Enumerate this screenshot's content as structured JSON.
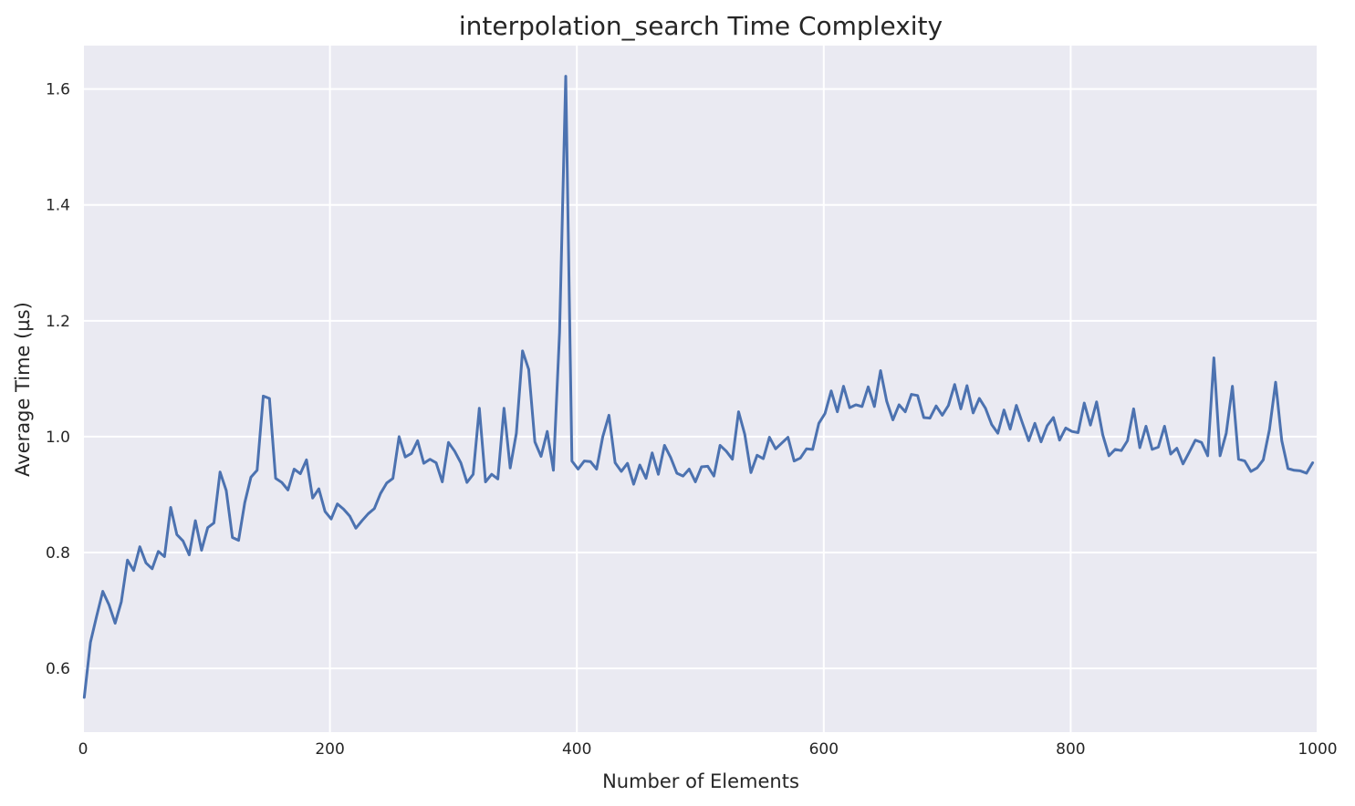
{
  "chart_data": {
    "type": "line",
    "title": "interpolation_search Time Complexity",
    "xlabel": "Number of Elements",
    "ylabel": "Average Time (µs)",
    "xlim": [
      0,
      1000
    ],
    "ylim": [
      0.49,
      1.675
    ],
    "x_ticks": [
      0,
      200,
      400,
      600,
      800,
      1000
    ],
    "y_ticks": [
      0.6,
      0.8,
      1.0,
      1.2,
      1.4,
      1.6
    ],
    "x_tick_labels": [
      "0",
      "200",
      "400",
      "600",
      "800",
      "1000"
    ],
    "y_tick_labels": [
      "0.6",
      "0.8",
      "1.0",
      "1.2",
      "1.4",
      "1.6"
    ],
    "grid": true,
    "colors": {
      "background": "#eaeaf2",
      "grid": "#ffffff",
      "line": "#4c72b0",
      "text": "#262626"
    },
    "series": [
      {
        "x": [
          1,
          6,
          11,
          16,
          21,
          26,
          31,
          36,
          41,
          46,
          51,
          56,
          61,
          66,
          71,
          76,
          81,
          86,
          91,
          96,
          101,
          106,
          111,
          116,
          121,
          126,
          131,
          136,
          141,
          146,
          151,
          156,
          161,
          166,
          171,
          176,
          181,
          186,
          191,
          196,
          201,
          206,
          211,
          216,
          221,
          226,
          231,
          236,
          241,
          246,
          251,
          256,
          261,
          266,
          271,
          276,
          281,
          286,
          291,
          296,
          301,
          306,
          311,
          316,
          321,
          326,
          331,
          336,
          341,
          346,
          351,
          356,
          361,
          366,
          371,
          376,
          381,
          386,
          391,
          396,
          401,
          406,
          411,
          416,
          421,
          426,
          431,
          436,
          441,
          446,
          451,
          456,
          461,
          466,
          471,
          476,
          481,
          486,
          491,
          496,
          501,
          506,
          511,
          516,
          521,
          526,
          531,
          536,
          541,
          546,
          551,
          556,
          561,
          566,
          571,
          576,
          581,
          586,
          591,
          596,
          601,
          606,
          611,
          616,
          621,
          626,
          631,
          636,
          641,
          646,
          651,
          656,
          661,
          666,
          671,
          676,
          681,
          686,
          691,
          696,
          701,
          706,
          711,
          716,
          721,
          726,
          731,
          736,
          741,
          746,
          751,
          756,
          761,
          766,
          771,
          776,
          781,
          786,
          791,
          796,
          801,
          806,
          811,
          816,
          821,
          826,
          831,
          836,
          841,
          846,
          851,
          856,
          861,
          866,
          871,
          876,
          881,
          886,
          891,
          896,
          901,
          906,
          911,
          916,
          921,
          926,
          931,
          936,
          941,
          946,
          951,
          956,
          961,
          966,
          971,
          976,
          981,
          986,
          991,
          996
        ],
        "y": [
          0.55,
          0.645,
          0.69,
          0.733,
          0.71,
          0.678,
          0.715,
          0.787,
          0.769,
          0.81,
          0.782,
          0.772,
          0.802,
          0.793,
          0.878,
          0.831,
          0.82,
          0.796,
          0.855,
          0.804,
          0.843,
          0.851,
          0.939,
          0.907,
          0.826,
          0.821,
          0.886,
          0.93,
          0.942,
          1.07,
          1.066,
          0.928,
          0.921,
          0.908,
          0.944,
          0.936,
          0.96,
          0.894,
          0.91,
          0.871,
          0.858,
          0.884,
          0.875,
          0.863,
          0.842,
          0.855,
          0.867,
          0.876,
          0.902,
          0.92,
          0.928,
          1.0,
          0.965,
          0.971,
          0.993,
          0.954,
          0.961,
          0.955,
          0.922,
          0.99,
          0.975,
          0.955,
          0.921,
          0.935,
          1.049,
          0.922,
          0.935,
          0.927,
          1.049,
          0.946,
          1.006,
          1.148,
          1.116,
          0.991,
          0.966,
          1.009,
          0.942,
          1.18,
          1.622,
          0.958,
          0.944,
          0.958,
          0.957,
          0.944,
          1.0,
          1.037,
          0.955,
          0.94,
          0.954,
          0.918,
          0.951,
          0.928,
          0.972,
          0.935,
          0.985,
          0.964,
          0.937,
          0.932,
          0.944,
          0.922,
          0.948,
          0.949,
          0.932,
          0.985,
          0.975,
          0.961,
          1.043,
          1.004,
          0.938,
          0.968,
          0.962,
          0.999,
          0.979,
          0.989,
          0.999,
          0.958,
          0.963,
          0.979,
          0.978,
          1.023,
          1.04,
          1.079,
          1.043,
          1.087,
          1.05,
          1.055,
          1.052,
          1.086,
          1.052,
          1.114,
          1.061,
          1.029,
          1.055,
          1.043,
          1.073,
          1.071,
          1.033,
          1.032,
          1.053,
          1.037,
          1.054,
          1.09,
          1.048,
          1.088,
          1.041,
          1.066,
          1.049,
          1.021,
          1.006,
          1.046,
          1.013,
          1.054,
          1.023,
          0.993,
          1.023,
          0.991,
          1.019,
          1.033,
          0.994,
          1.015,
          1.009,
          1.007,
          1.058,
          1.02,
          1.06,
          1.003,
          0.967,
          0.978,
          0.976,
          0.993,
          1.048,
          0.981,
          1.018,
          0.978,
          0.982,
          1.018,
          0.97,
          0.98,
          0.953,
          0.973,
          0.994,
          0.99,
          0.967,
          1.136,
          0.967,
          1.006,
          1.087,
          0.961,
          0.958,
          0.94,
          0.946,
          0.96,
          1.012,
          1.094,
          0.993,
          0.945,
          0.942,
          0.941,
          0.937,
          0.955
        ]
      }
    ]
  }
}
